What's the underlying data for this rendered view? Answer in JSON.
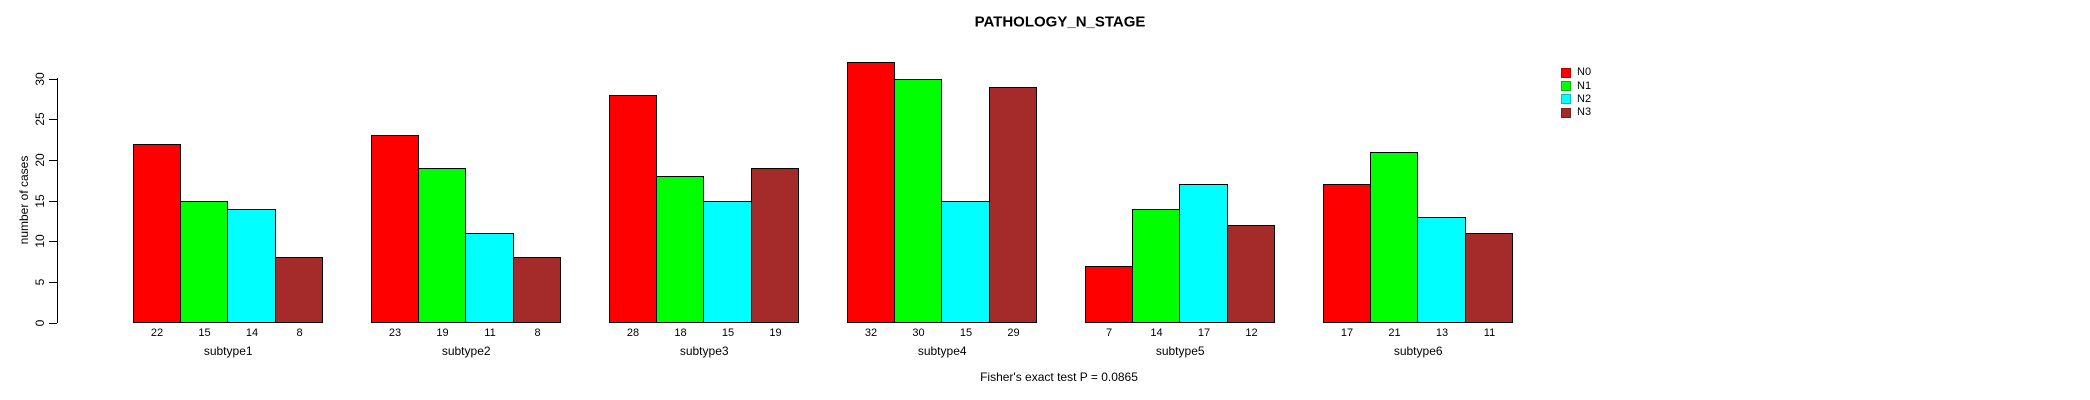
{
  "chart_data": {
    "type": "bar",
    "title": "PATHOLOGY_N_STAGE",
    "categories": [
      "subtype1",
      "subtype2",
      "subtype3",
      "subtype4",
      "subtype5",
      "subtype6"
    ],
    "series": [
      {
        "name": "N0",
        "color": "#FF0000",
        "values": [
          22,
          23,
          28,
          32,
          7,
          17
        ]
      },
      {
        "name": "N1",
        "color": "#00FF00",
        "values": [
          15,
          19,
          18,
          30,
          14,
          21
        ]
      },
      {
        "name": "N2",
        "color": "#00FFFF",
        "values": [
          14,
          11,
          15,
          15,
          17,
          13
        ]
      },
      {
        "name": "N3",
        "color": "#A52A2A",
        "values": [
          8,
          8,
          19,
          29,
          12,
          11
        ]
      }
    ],
    "xlabel": "",
    "ylabel": "number of cases",
    "ylim": [
      0,
      30
    ],
    "yticks": [
      0,
      5,
      10,
      15,
      20,
      25,
      30
    ],
    "grid": false,
    "bar_value_labels_shown": true,
    "legend_position": "top-right-outside",
    "annotation": "Fisher's exact test P = 0.0865"
  }
}
